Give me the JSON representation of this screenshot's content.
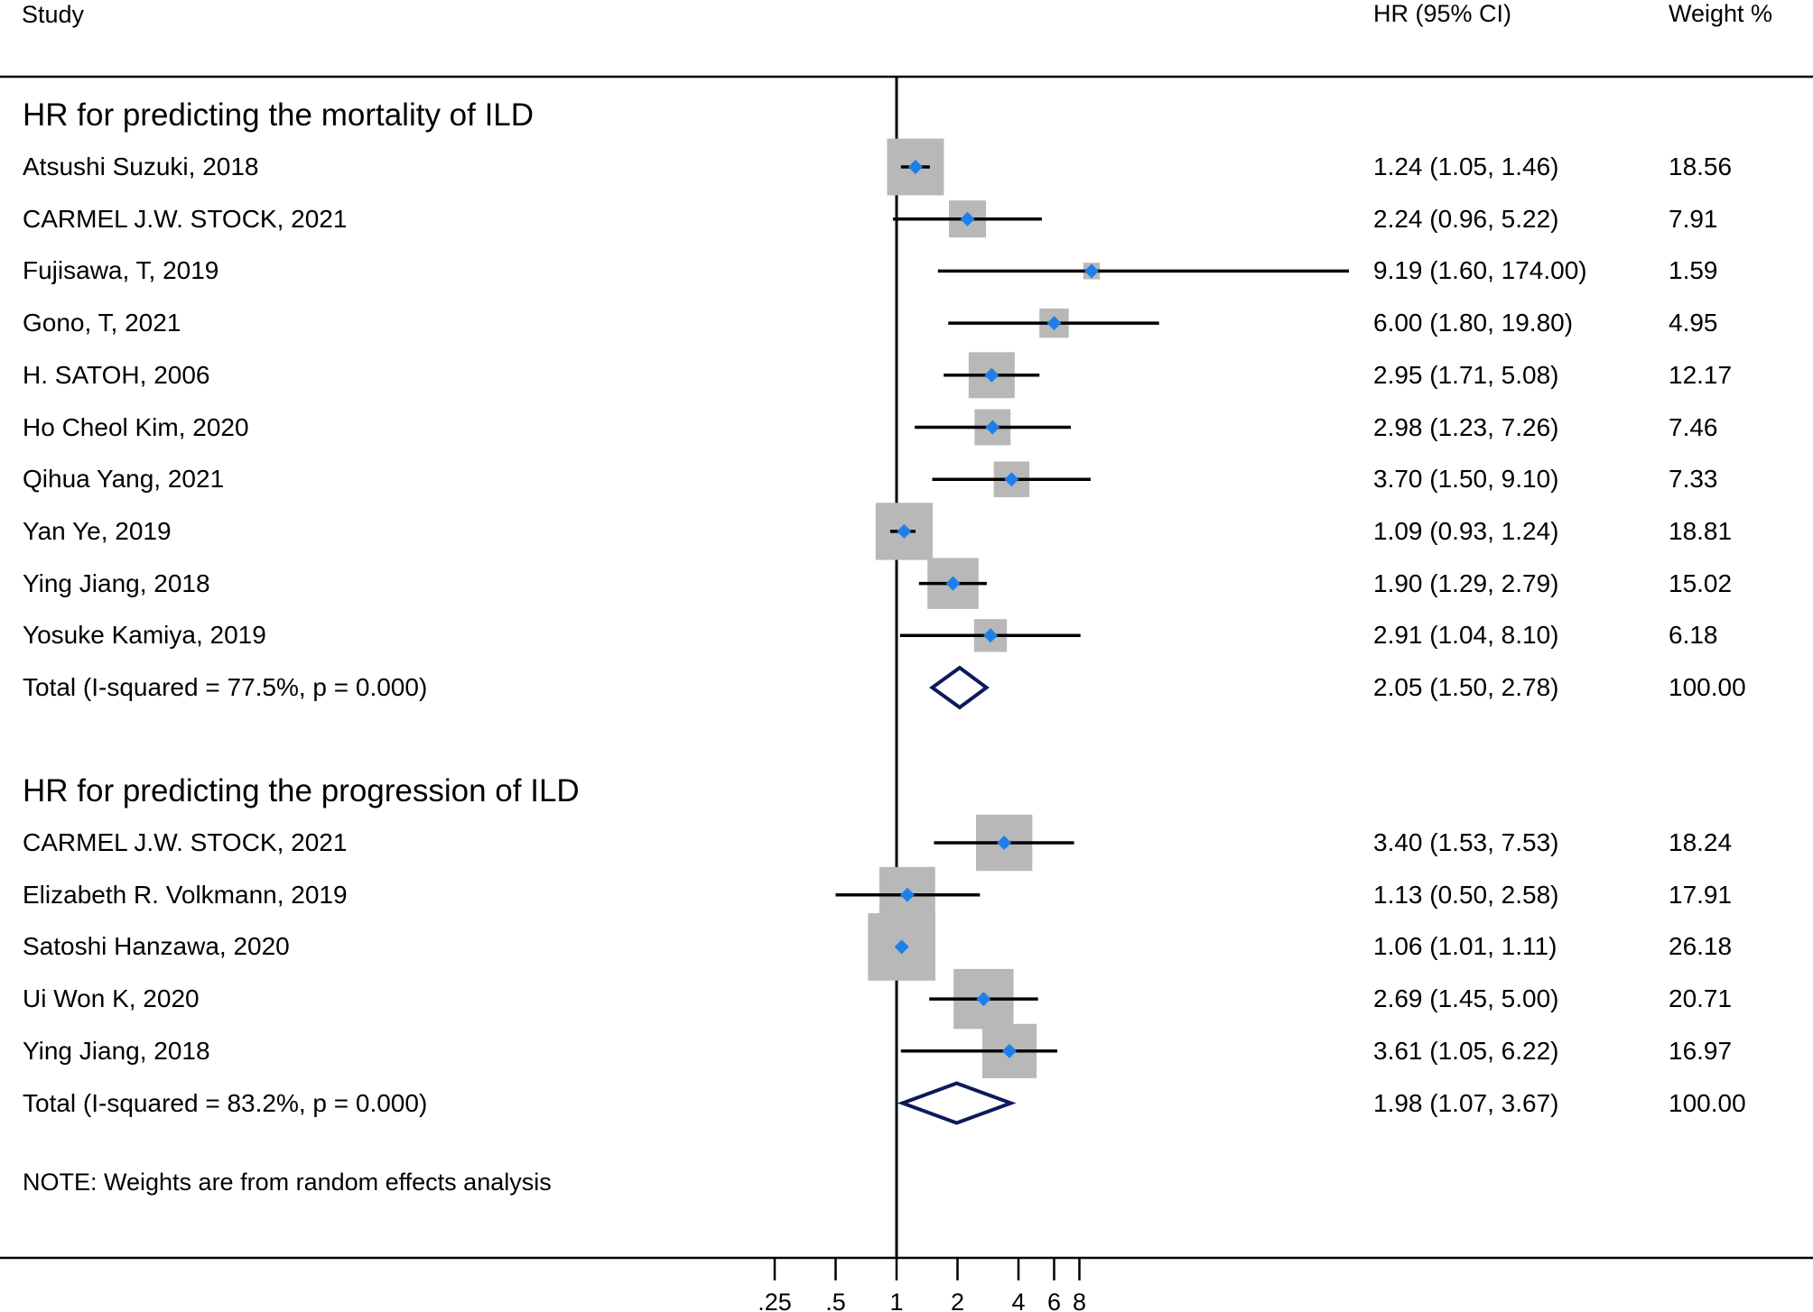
{
  "header": {
    "study": "Study",
    "hr": "HR (95% CI)",
    "weight": "Weight %"
  },
  "note": "NOTE: Weights are from random effects analysis",
  "colors": {
    "ci_line": "#000000",
    "weight_box": "#b8b8b8",
    "point": "#1e7fe8",
    "diamond": "#0b1a5c",
    "axis": "#000000"
  },
  "chart_data": {
    "type": "forest",
    "x_scale": "log2",
    "xlim": [
      0.25,
      8
    ],
    "reference_line": 1,
    "x_ticks": [
      {
        "value": 0.25,
        "label": ".25"
      },
      {
        "value": 0.5,
        "label": ".5"
      },
      {
        "value": 1,
        "label": "1"
      },
      {
        "value": 2,
        "label": "2"
      },
      {
        "value": 4,
        "label": "4"
      },
      {
        "value": 6,
        "label": "6"
      },
      {
        "value": 8,
        "label": "8"
      }
    ],
    "groups": [
      {
        "title": "HR for predicting the mortality of ILD",
        "studies": [
          {
            "label": "Atsushi Suzuki, 2018",
            "hr": 1.24,
            "lo": 1.05,
            "hi": 1.46,
            "ci_text": "1.24 (1.05, 1.46)",
            "weight": 18.56,
            "weight_text": "18.56"
          },
          {
            "label": "CARMEL J.W. STOCK, 2021",
            "hr": 2.24,
            "lo": 0.96,
            "hi": 5.22,
            "ci_text": "2.24 (0.96, 5.22)",
            "weight": 7.91,
            "weight_text": "7.91"
          },
          {
            "label": "Fujisawa, T, 2019",
            "hr": 9.19,
            "lo": 1.6,
            "hi": 174.0,
            "ci_text": "9.19 (1.60, 174.00)",
            "weight": 1.59,
            "weight_text": "1.59"
          },
          {
            "label": "Gono, T,  2021",
            "hr": 6.0,
            "lo": 1.8,
            "hi": 19.8,
            "ci_text": "6.00 (1.80, 19.80)",
            "weight": 4.95,
            "weight_text": "4.95"
          },
          {
            "label": "H. SATOH, 2006",
            "hr": 2.95,
            "lo": 1.71,
            "hi": 5.08,
            "ci_text": "2.95 (1.71, 5.08)",
            "weight": 12.17,
            "weight_text": "12.17"
          },
          {
            "label": "Ho Cheol Kim, 2020",
            "hr": 2.98,
            "lo": 1.23,
            "hi": 7.26,
            "ci_text": "2.98 (1.23, 7.26)",
            "weight": 7.46,
            "weight_text": "7.46"
          },
          {
            "label": "Qihua Yang, 2021",
            "hr": 3.7,
            "lo": 1.5,
            "hi": 9.1,
            "ci_text": "3.70 (1.50, 9.10)",
            "weight": 7.33,
            "weight_text": "7.33"
          },
          {
            "label": "Yan Ye, 2019",
            "hr": 1.09,
            "lo": 0.93,
            "hi": 1.24,
            "ci_text": "1.09 (0.93, 1.24)",
            "weight": 18.81,
            "weight_text": "18.81"
          },
          {
            "label": "Ying Jiang, 2018",
            "hr": 1.9,
            "lo": 1.29,
            "hi": 2.79,
            "ci_text": "1.90 (1.29, 2.79)",
            "weight": 15.02,
            "weight_text": "15.02"
          },
          {
            "label": "Yosuke Kamiya, 2019",
            "hr": 2.91,
            "lo": 1.04,
            "hi": 8.1,
            "ci_text": "2.91 (1.04, 8.10)",
            "weight": 6.18,
            "weight_text": "6.18"
          }
        ],
        "total": {
          "label": "Total  (I-squared = 77.5%, p = 0.000)",
          "hr": 2.05,
          "lo": 1.5,
          "hi": 2.78,
          "ci_text": "2.05 (1.50, 2.78)",
          "weight_text": "100.00"
        }
      },
      {
        "title": "HR for predicting the progression of ILD",
        "studies": [
          {
            "label": "CARMEL J.W. STOCK, 2021",
            "hr": 3.4,
            "lo": 1.53,
            "hi": 7.53,
            "ci_text": "3.40 (1.53, 7.53)",
            "weight": 18.24,
            "weight_text": "18.24"
          },
          {
            "label": "Elizabeth R. Volkmann,  2019",
            "hr": 1.13,
            "lo": 0.5,
            "hi": 2.58,
            "ci_text": "1.13 (0.50, 2.58)",
            "weight": 17.91,
            "weight_text": "17.91"
          },
          {
            "label": "Satoshi Hanzawa, 2020",
            "hr": 1.06,
            "lo": 1.01,
            "hi": 1.11,
            "ci_text": "1.06 (1.01, 1.11)",
            "weight": 26.18,
            "weight_text": "26.18"
          },
          {
            "label": "Ui Won K, 2020",
            "hr": 2.69,
            "lo": 1.45,
            "hi": 5.0,
            "ci_text": "2.69 (1.45, 5.00)",
            "weight": 20.71,
            "weight_text": "20.71"
          },
          {
            "label": "Ying Jiang, 2018",
            "hr": 3.61,
            "lo": 1.05,
            "hi": 6.22,
            "ci_text": "3.61 (1.05, 6.22)",
            "weight": 16.97,
            "weight_text": "16.97"
          }
        ],
        "total": {
          "label": "Total  (I-squared = 83.2%, p = 0.000)",
          "hr": 1.98,
          "lo": 1.07,
          "hi": 3.67,
          "ci_text": "1.98 (1.07, 3.67)",
          "weight_text": "100.00"
        }
      }
    ]
  }
}
